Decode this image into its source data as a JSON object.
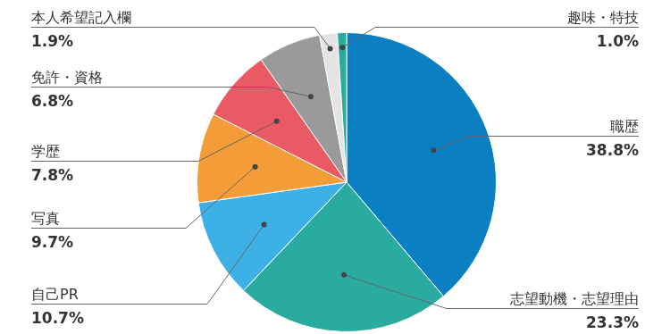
{
  "chart_data": {
    "type": "pie",
    "categories": [
      "職歴",
      "志望動機・志望理由",
      "自己PR",
      "写真",
      "学歴",
      "免許・資格",
      "本人希望記入欄",
      "趣味・特技"
    ],
    "values": [
      38.8,
      23.3,
      10.7,
      9.7,
      7.8,
      6.8,
      1.9,
      1.0
    ],
    "value_labels": [
      "38.8%",
      "23.3%",
      "10.7%",
      "9.7%",
      "7.8%",
      "6.8%",
      "1.9%",
      "1.0%"
    ],
    "colors": [
      "#0a7fc1",
      "#2aab9f",
      "#3db0e6",
      "#f39c38",
      "#e95a65",
      "#9a9a9a",
      "#e4e4e4",
      "#2aab9f"
    ],
    "data_labels": true
  }
}
